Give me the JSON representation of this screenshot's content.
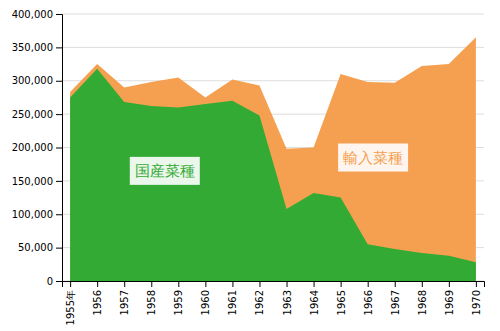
{
  "chart_data": {
    "type": "area",
    "x": [
      1955,
      1956,
      1957,
      1958,
      1959,
      1960,
      1961,
      1962,
      1963,
      1964,
      1965,
      1966,
      1967,
      1968,
      1969,
      1970
    ],
    "series": [
      {
        "color": "#f5a050",
        "values": [
          283000,
          325000,
          290000,
          298000,
          305000,
          275000,
          302000,
          293000,
          198000,
          200000,
          310000,
          298000,
          297000,
          322000,
          325000,
          365000
        ]
      },
      {
        "color": "#33aa33",
        "values": [
          275000,
          318000,
          268000,
          262000,
          260000,
          265000,
          270000,
          248000,
          108000,
          132000,
          125000,
          55000,
          48000,
          42000,
          38000,
          28000
        ]
      }
    ],
    "xlim": [
      1954.7,
      1970.3
    ],
    "xticks": [
      {
        "value": 1955,
        "label": "1955年"
      },
      1956,
      1957,
      1958,
      1959,
      1960,
      1961,
      1962,
      1963,
      1964,
      1965,
      1966,
      1967,
      1968,
      1969,
      1970
    ],
    "ylim": [
      0,
      400000
    ],
    "yticks": [
      0,
      {
        "value": 50000,
        "label": "50,000"
      },
      {
        "value": 100000,
        "label": "100,000"
      },
      {
        "value": 150000,
        "label": "150,000"
      },
      {
        "value": 200000,
        "label": "200,000"
      },
      {
        "value": 250000,
        "label": "250,000"
      },
      {
        "value": 300000,
        "label": "300,000"
      },
      {
        "value": 350000,
        "label": "350,000"
      },
      {
        "value": 400000,
        "label": "400,000"
      }
    ],
    "grid": true,
    "annotations": [
      {
        "text": "国産菜種",
        "x": 1958.5,
        "y": 165000,
        "color": "#33aa33"
      },
      {
        "text": "輸入菜種",
        "x": 1966.2,
        "y": 185000,
        "color": "#f5a050"
      }
    ]
  }
}
